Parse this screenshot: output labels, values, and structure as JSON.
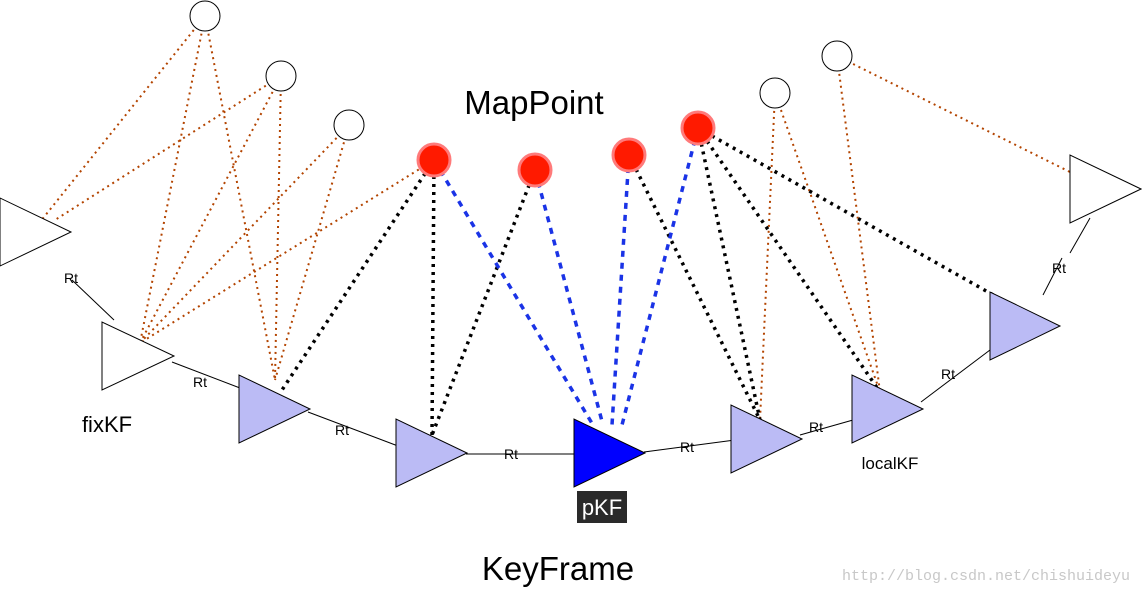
{
  "labels": {
    "mappoint": "MapPoint",
    "keyframe": "KeyFrame",
    "fixkf": "fixKF",
    "localkf": "localKF",
    "pkf": "pKF",
    "edge": "Rt"
  },
  "watermark": "http://blog.csdn.net/chishuideyu",
  "colors": {
    "fixed_keyframe_fill": "#ffffff",
    "local_keyframe_fill": "#bbbbf5",
    "current_keyframe_fill": "#0000ff",
    "active_mappoint_fill": "#ff1a00",
    "active_mappoint_ring": "#ff8080",
    "inactive_mappoint_fill": "#ffffff",
    "fixed_observation_line": "#b34400",
    "local_observation_line": "#000000",
    "current_observation_line": "#1a33e6",
    "pkf_label_background": "#2a2a2a"
  }
}
